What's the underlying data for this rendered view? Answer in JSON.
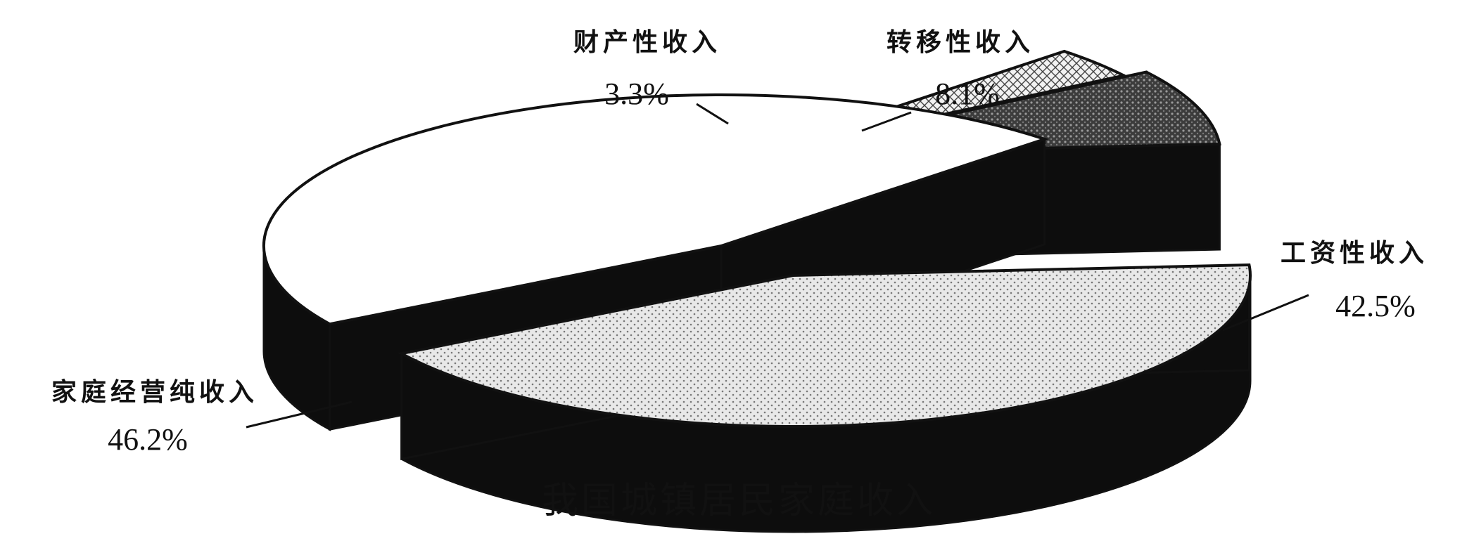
{
  "chart_data": {
    "type": "pie",
    "title": "我国城镇居民家庭收入",
    "categories": [
      "工资性收入",
      "转移性收入",
      "财产性收入",
      "家庭经营纯收入"
    ],
    "values": [
      42.5,
      8.1,
      3.3,
      46.2
    ],
    "value_labels": [
      "42.5%",
      "8.1%",
      "3.3%",
      "46.2%"
    ],
    "unit": "%",
    "style": "exploded 3d pie, black and white patterns",
    "legend": "none",
    "colors": {
      "ink": "#111111",
      "background": "#ffffff",
      "gongzi_fill": "#e4e4e4",
      "zhuanyi_fill": "#4a4a4a",
      "caichan_fill": "#d2d2d2",
      "jiating_fill": "#ffffff",
      "side": "#0d0d0d"
    }
  }
}
